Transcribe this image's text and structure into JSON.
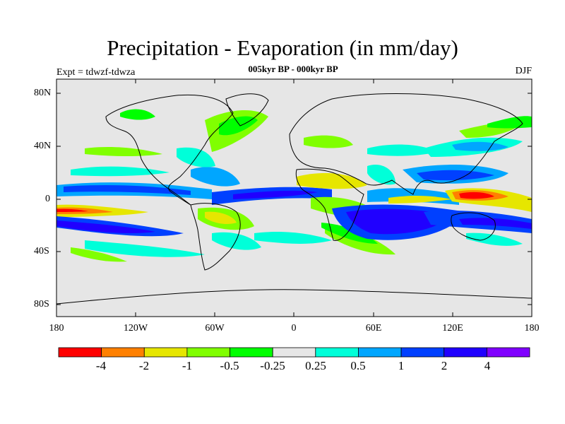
{
  "title": "Precipitation - Evaporation (in mm/day)",
  "subtitle": "005kyr BP - 000kyr BP",
  "experiment": "Expt = tdwzf-tdwza",
  "season": "DJF",
  "map": {
    "lat_ticks": [
      "80N",
      "40N",
      "0",
      "40S",
      "80S"
    ],
    "lon_ticks": [
      "180",
      "120W",
      "60W",
      "0",
      "60E",
      "120E",
      "180"
    ],
    "background_color": "#e6e6e6"
  },
  "colorbar": {
    "colors": [
      "#ff0000",
      "#ff8000",
      "#e6e600",
      "#80ff00",
      "#00ff00",
      "#e6e6e6",
      "#00ffd9",
      "#00a6ff",
      "#0040ff",
      "#2000ff",
      "#8000ff"
    ],
    "labels": [
      "-4",
      "-2",
      "-1",
      "-0.5",
      "-0.25",
      "0.25",
      "0.5",
      "1",
      "2",
      "4"
    ]
  }
}
